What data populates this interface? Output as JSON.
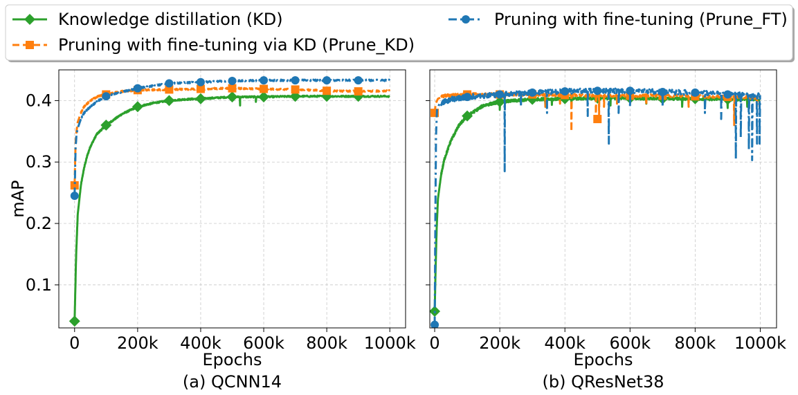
{
  "chart_data": {
    "type": "line",
    "legend": {
      "placement": "top",
      "entries": [
        {
          "label": "Knowledge distillation (KD)",
          "color": "#2ca02c",
          "marker": "diamond",
          "dash": "solid"
        },
        {
          "label": "Pruning with fine-tuning via KD (Prune_KD)",
          "color": "#ff7f0e",
          "marker": "square",
          "dash": "dashed"
        },
        {
          "label": "Pruning with fine-tuning (Prune_FT)",
          "color": "#1f77b4",
          "marker": "circle",
          "dash": "dashdot"
        }
      ]
    },
    "panels": [
      {
        "caption": "(a) QCNN14",
        "xlabel": "Epochs",
        "ylabel": "mAP",
        "xlim": [
          -50000,
          1050000
        ],
        "ylim": [
          0.03,
          0.45
        ],
        "xticks": [
          0,
          200000,
          400000,
          600000,
          800000,
          1000000
        ],
        "xtick_labels": [
          "0",
          "200k",
          "400k",
          "600k",
          "800k",
          "1000k"
        ],
        "yticks": [
          0.1,
          0.2,
          0.3,
          0.4
        ],
        "ytick_labels": [
          "0.1",
          "0.2",
          "0.3",
          "0.4"
        ],
        "grid": true,
        "series": [
          {
            "name": "Knowledge distillation (KD)",
            "color": "#2ca02c",
            "points": [
              [
                0,
                0.041
              ],
              [
                5000,
                0.15
              ],
              [
                10000,
                0.215
              ],
              [
                20000,
                0.262
              ],
              [
                30000,
                0.29
              ],
              [
                40000,
                0.31
              ],
              [
                50000,
                0.325
              ],
              [
                70000,
                0.345
              ],
              [
                100000,
                0.36
              ],
              [
                150000,
                0.378
              ],
              [
                200000,
                0.39
              ],
              [
                250000,
                0.396
              ],
              [
                300000,
                0.4
              ],
              [
                350000,
                0.402
              ],
              [
                400000,
                0.403
              ],
              [
                500000,
                0.406
              ],
              [
                600000,
                0.406
              ],
              [
                700000,
                0.407
              ],
              [
                800000,
                0.407
              ],
              [
                900000,
                0.407
              ],
              [
                1000000,
                0.407
              ]
            ],
            "dips": [
              [
                525000,
                0.392
              ],
              [
                575000,
                0.398
              ]
            ],
            "markers": [
              0,
              100000,
              200000,
              300000,
              400000,
              500000,
              600000,
              700000,
              800000,
              900000
            ]
          },
          {
            "name": "Pruning with fine-tuning via KD (Prune_KD)",
            "color": "#ff7f0e",
            "points": [
              [
                0,
                0.262
              ],
              [
                3000,
                0.33
              ],
              [
                6000,
                0.35
              ],
              [
                10000,
                0.365
              ],
              [
                20000,
                0.38
              ],
              [
                30000,
                0.39
              ],
              [
                50000,
                0.4
              ],
              [
                75000,
                0.407
              ],
              [
                100000,
                0.41
              ],
              [
                150000,
                0.415
              ],
              [
                200000,
                0.417
              ],
              [
                300000,
                0.418
              ],
              [
                400000,
                0.419
              ],
              [
                500000,
                0.42
              ],
              [
                600000,
                0.419
              ],
              [
                700000,
                0.418
              ],
              [
                800000,
                0.416
              ],
              [
                900000,
                0.415
              ],
              [
                1000000,
                0.416
              ]
            ],
            "dips": [],
            "markers": [
              0,
              100000,
              200000,
              300000,
              400000,
              500000,
              600000,
              700000,
              800000,
              900000
            ]
          },
          {
            "name": "Pruning with fine-tuning (Prune_FT)",
            "color": "#1f77b4",
            "points": [
              [
                0,
                0.245
              ],
              [
                3000,
                0.32
              ],
              [
                6000,
                0.345
              ],
              [
                10000,
                0.355
              ],
              [
                20000,
                0.37
              ],
              [
                30000,
                0.38
              ],
              [
                50000,
                0.39
              ],
              [
                75000,
                0.4
              ],
              [
                100000,
                0.407
              ],
              [
                150000,
                0.414
              ],
              [
                200000,
                0.42
              ],
              [
                250000,
                0.424
              ],
              [
                300000,
                0.428
              ],
              [
                400000,
                0.43
              ],
              [
                500000,
                0.432
              ],
              [
                600000,
                0.433
              ],
              [
                700000,
                0.433
              ],
              [
                800000,
                0.433
              ],
              [
                900000,
                0.433
              ],
              [
                1000000,
                0.433
              ]
            ],
            "dips": [],
            "markers": [
              0,
              100000,
              200000,
              300000,
              400000,
              500000,
              600000,
              700000,
              800000,
              900000
            ]
          }
        ]
      },
      {
        "caption": "(b) QResNet38",
        "xlabel": "Epochs",
        "ylabel": "",
        "xlim": [
          -15000,
          1050000
        ],
        "ylim": [
          0.03,
          0.45
        ],
        "xticks": [
          0,
          200000,
          400000,
          600000,
          800000,
          1000000
        ],
        "xtick_labels": [
          "0",
          "200k",
          "400k",
          "600k",
          "800k",
          "1000k"
        ],
        "yticks": [
          0.1,
          0.2,
          0.3,
          0.4
        ],
        "ytick_labels": [],
        "grid": true,
        "series": [
          {
            "name": "Knowledge distillation (KD)",
            "color": "#2ca02c",
            "points": [
              [
                0,
                0.057
              ],
              [
                3000,
                0.13
              ],
              [
                6000,
                0.19
              ],
              [
                10000,
                0.24
              ],
              [
                20000,
                0.28
              ],
              [
                30000,
                0.305
              ],
              [
                50000,
                0.335
              ],
              [
                75000,
                0.36
              ],
              [
                100000,
                0.375
              ],
              [
                150000,
                0.392
              ],
              [
                200000,
                0.398
              ],
              [
                300000,
                0.402
              ],
              [
                400000,
                0.403
              ],
              [
                500000,
                0.404
              ],
              [
                600000,
                0.404
              ],
              [
                700000,
                0.403
              ],
              [
                800000,
                0.403
              ],
              [
                900000,
                0.402
              ],
              [
                1000000,
                0.402
              ]
            ],
            "dips": [
              [
                200000,
                0.385
              ],
              [
                340000,
                0.39
              ],
              [
                360000,
                0.393
              ],
              [
                420000,
                0.388
              ],
              [
                540000,
                0.392
              ],
              [
                650000,
                0.395
              ],
              [
                760000,
                0.39
              ],
              [
                830000,
                0.393
              ],
              [
                900000,
                0.388
              ],
              [
                960000,
                0.39
              ]
            ],
            "markers": [
              0,
              100000,
              200000,
              300000,
              400000,
              500000,
              600000,
              700000,
              800000,
              900000
            ]
          },
          {
            "name": "Pruning with fine-tuning via KD (Prune_KD)",
            "color": "#ff7f0e",
            "points": [
              [
                0,
                0.38
              ],
              [
                3000,
                0.395
              ],
              [
                10000,
                0.403
              ],
              [
                30000,
                0.408
              ],
              [
                100000,
                0.41
              ],
              [
                200000,
                0.41
              ],
              [
                300000,
                0.41
              ],
              [
                400000,
                0.409
              ],
              [
                500000,
                0.408
              ],
              [
                600000,
                0.408
              ],
              [
                700000,
                0.408
              ],
              [
                800000,
                0.407
              ],
              [
                900000,
                0.406
              ],
              [
                1000000,
                0.405
              ]
            ],
            "dips": [
              [
                340000,
                0.39
              ],
              [
                385000,
                0.395
              ],
              [
                420000,
                0.35
              ],
              [
                495000,
                0.37
              ],
              [
                505000,
                0.375
              ],
              [
                520000,
                0.39
              ],
              [
                560000,
                0.395
              ],
              [
                650000,
                0.393
              ],
              [
                780000,
                0.39
              ],
              [
                920000,
                0.36
              ],
              [
                990000,
                0.39
              ]
            ],
            "markers": [
              0,
              100000,
              200000,
              300000,
              400000,
              500000,
              600000,
              700000,
              800000,
              900000
            ]
          },
          {
            "name": "Pruning with fine-tuning (Prune_FT)",
            "color": "#1f77b4",
            "points": [
              [
                0,
                0.035
              ],
              [
                2000,
                0.2
              ],
              [
                4000,
                0.34
              ],
              [
                7000,
                0.385
              ],
              [
                15000,
                0.395
              ],
              [
                50000,
                0.402
              ],
              [
                100000,
                0.406
              ],
              [
                200000,
                0.41
              ],
              [
                300000,
                0.413
              ],
              [
                400000,
                0.415
              ],
              [
                500000,
                0.416
              ],
              [
                600000,
                0.416
              ],
              [
                700000,
                0.414
              ],
              [
                800000,
                0.413
              ],
              [
                900000,
                0.41
              ],
              [
                1000000,
                0.408
              ]
            ],
            "dips": [
              [
                215000,
                0.285
              ],
              [
                265000,
                0.39
              ],
              [
                345000,
                0.38
              ],
              [
                470000,
                0.375
              ],
              [
                535000,
                0.33
              ],
              [
                565000,
                0.38
              ],
              [
                600000,
                0.39
              ],
              [
                700000,
                0.39
              ],
              [
                830000,
                0.38
              ],
              [
                880000,
                0.37
              ],
              [
                925000,
                0.305
              ],
              [
                940000,
                0.34
              ],
              [
                965000,
                0.32
              ],
              [
                975000,
                0.303
              ],
              [
                990000,
                0.33
              ],
              [
                998000,
                0.33
              ]
            ],
            "markers": [
              0,
              100000,
              200000,
              300000,
              400000,
              500000,
              600000,
              700000,
              800000,
              900000
            ]
          }
        ]
      }
    ]
  }
}
